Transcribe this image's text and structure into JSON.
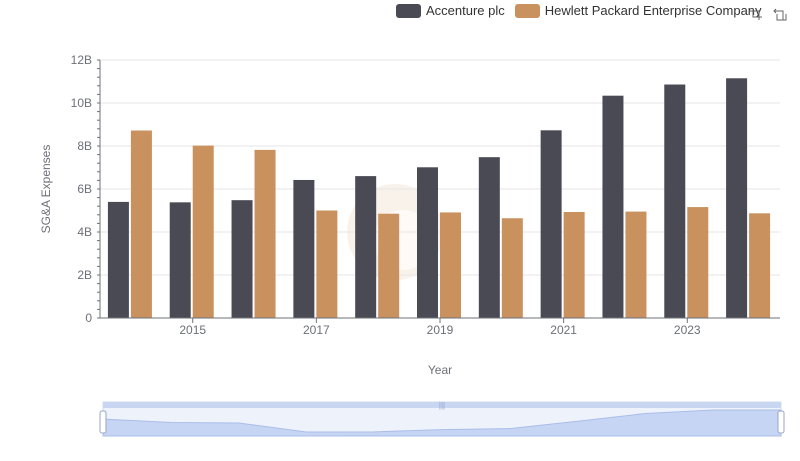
{
  "chart_data": {
    "type": "bar",
    "xlabel": "Year",
    "ylabel": "SG&A Expenses",
    "ylim": [
      0,
      12000000000
    ],
    "y_ticks": [
      "0",
      "2B",
      "4B",
      "6B",
      "8B",
      "10B",
      "12B"
    ],
    "x_tick_labels": [
      "2015",
      "2017",
      "2019",
      "2021",
      "2023"
    ],
    "categories": [
      "2014",
      "2015",
      "2016",
      "2017",
      "2018",
      "2019",
      "2020",
      "2021",
      "2022",
      "2023",
      "2024"
    ],
    "series": [
      {
        "name": "Accenture plc",
        "color": "#4a4a55",
        "values": [
          5400000000,
          5380000000,
          5480000000,
          6420000000,
          6600000000,
          7010000000,
          7480000000,
          8730000000,
          10340000000,
          10860000000,
          11150000000
        ]
      },
      {
        "name": "Hewlett Packard Enterprise Company",
        "color": "#c8915e",
        "values": [
          8720000000,
          8020000000,
          7820000000,
          5000000000,
          4850000000,
          4910000000,
          4640000000,
          4930000000,
          4950000000,
          5160000000,
          4870000000
        ]
      }
    ],
    "grid": true,
    "legend_position": "top-right"
  },
  "toolbox": {
    "zoom_icon": "zoom-select-icon",
    "reset_icon": "zoom-reset-icon"
  },
  "datazoom": {
    "range": [
      0,
      100
    ]
  }
}
